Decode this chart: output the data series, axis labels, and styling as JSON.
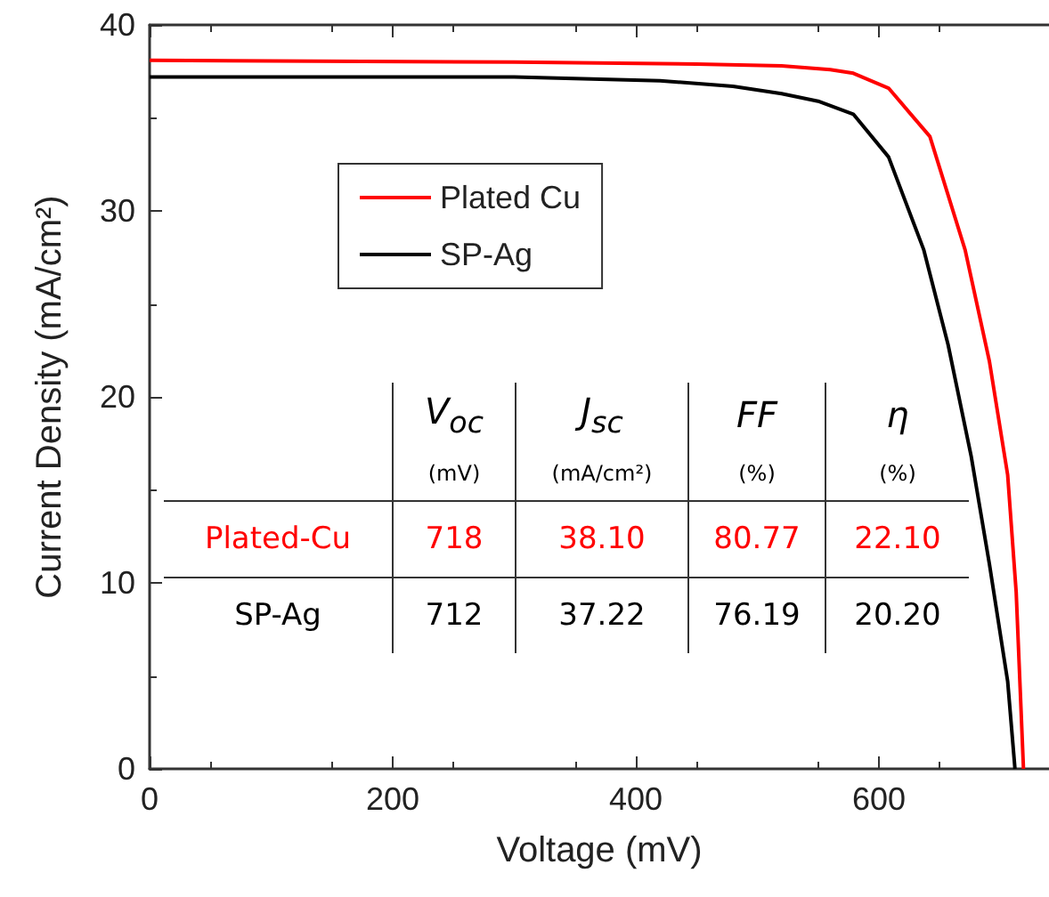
{
  "chart_data": {
    "type": "line",
    "xlabel": "Voltage (mV)",
    "ylabel": "Current Density (mA/cm²)",
    "xlim": [
      0,
      740
    ],
    "xticks": [
      0,
      200,
      400,
      600
    ],
    "ylim": [
      0,
      40
    ],
    "yticks": [
      0,
      10,
      20,
      30,
      40
    ],
    "grid": false,
    "legend": "top left",
    "marker": "none",
    "line_style": "solid",
    "series": [
      {
        "name": "Plated Cu",
        "color": "#ff0000",
        "x": [
          0,
          300,
          450,
          520,
          560,
          579,
          608,
          642,
          671,
          691,
          706,
          713,
          719
        ],
        "values": [
          38.1,
          38.0,
          37.9,
          37.8,
          37.6,
          37.4,
          36.6,
          34.0,
          27.9,
          21.9,
          15.8,
          9.5,
          0
        ]
      },
      {
        "name": "SP-Ag",
        "color": "#000000",
        "x": [
          0,
          300,
          420,
          480,
          520,
          550,
          579,
          608,
          637,
          657,
          676,
          691,
          706,
          712
        ],
        "values": [
          37.2,
          37.2,
          37.0,
          36.7,
          36.3,
          35.9,
          35.2,
          32.9,
          27.9,
          22.8,
          16.8,
          11.0,
          4.7,
          0
        ]
      }
    ],
    "annotations": [
      "V$_{oc}$",
      "J$_{sc}$",
      "FF",
      "η",
      "(mV)",
      "(mA/cm²)",
      "(%)",
      "(%)",
      "Plated-Cu",
      "718",
      "38.10",
      "80.77",
      "22.10",
      "SP-Ag",
      "712",
      "37.22",
      "76.19",
      "20.20"
    ]
  }
}
